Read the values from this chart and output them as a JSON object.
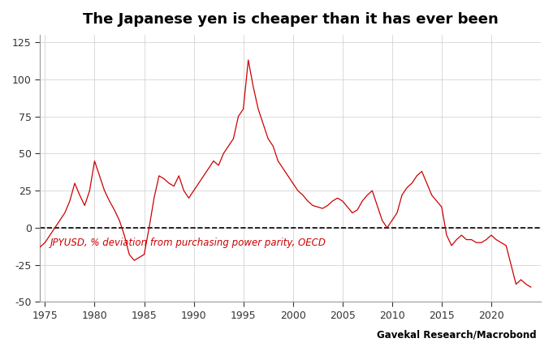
{
  "title": "The Japanese yen is cheaper than it has ever been",
  "annotation": "JPYUSD, % deviation from purchasing power parity, OECD",
  "source": "Gavekal Research/Macrobond",
  "line_color": "#CC0000",
  "zero_line_color": "#000000",
  "background_color": "#FFFFFF",
  "grid_color": "#CCCCCC",
  "ylim": [
    -50,
    130
  ],
  "yticks": [
    -50,
    -25,
    0,
    25,
    50,
    75,
    100,
    125
  ],
  "xlim": [
    1974.5,
    2025
  ],
  "xticks": [
    1975,
    1980,
    1985,
    1990,
    1995,
    2000,
    2005,
    2010,
    2015,
    2020
  ],
  "years": [
    1974.5,
    1975.0,
    1975.5,
    1976.0,
    1976.5,
    1977.0,
    1977.5,
    1978.0,
    1978.5,
    1979.0,
    1979.5,
    1980.0,
    1980.5,
    1981.0,
    1981.5,
    1982.0,
    1982.5,
    1983.0,
    1983.5,
    1984.0,
    1984.5,
    1985.0,
    1985.5,
    1986.0,
    1986.5,
    1987.0,
    1987.5,
    1988.0,
    1988.5,
    1989.0,
    1989.5,
    1990.0,
    1990.5,
    1991.0,
    1991.5,
    1992.0,
    1992.5,
    1993.0,
    1993.5,
    1994.0,
    1994.5,
    1995.0,
    1995.5,
    1996.0,
    1996.5,
    1997.0,
    1997.5,
    1998.0,
    1998.5,
    1999.0,
    1999.5,
    2000.0,
    2000.5,
    2001.0,
    2001.5,
    2002.0,
    2002.5,
    2003.0,
    2003.5,
    2004.0,
    2004.5,
    2005.0,
    2005.5,
    2006.0,
    2006.5,
    2007.0,
    2007.5,
    2008.0,
    2008.5,
    2009.0,
    2009.5,
    2010.0,
    2010.5,
    2011.0,
    2011.5,
    2012.0,
    2012.5,
    2013.0,
    2013.5,
    2014.0,
    2014.5,
    2015.0,
    2015.5,
    2016.0,
    2016.5,
    2017.0,
    2017.5,
    2018.0,
    2018.5,
    2019.0,
    2019.5,
    2020.0,
    2020.5,
    2021.0,
    2021.5,
    2022.0,
    2022.5,
    2023.0,
    2023.5,
    2024.0
  ],
  "values": [
    -13,
    -10,
    -5,
    0,
    5,
    10,
    18,
    30,
    22,
    15,
    25,
    45,
    35,
    25,
    18,
    12,
    5,
    -5,
    -18,
    -22,
    -20,
    -18,
    0,
    20,
    35,
    33,
    30,
    28,
    35,
    25,
    20,
    25,
    30,
    35,
    40,
    45,
    42,
    50,
    55,
    60,
    75,
    80,
    113,
    95,
    80,
    70,
    60,
    55,
    45,
    40,
    35,
    30,
    25,
    22,
    18,
    15,
    14,
    13,
    15,
    18,
    20,
    18,
    14,
    10,
    12,
    18,
    22,
    25,
    15,
    5,
    0,
    5,
    10,
    22,
    27,
    30,
    35,
    38,
    30,
    22,
    18,
    14,
    -5,
    -12,
    -8,
    -5,
    -8,
    -8,
    -10,
    -10,
    -8,
    -5,
    -8,
    -10,
    -12,
    -25,
    -38,
    -35,
    -38,
    -40
  ]
}
